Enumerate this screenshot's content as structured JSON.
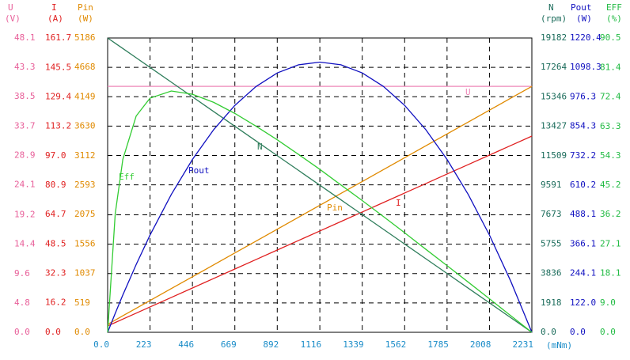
{
  "chart_data": {
    "type": "line",
    "x_unit": "(mNm)",
    "xlim": [
      0,
      2231
    ],
    "xticks": [
      {
        "value": 0,
        "label": "0.0"
      },
      223,
      446,
      669,
      892,
      1116,
      1339,
      1562,
      1785,
      2008,
      2231
    ],
    "x_tick_color": "#1a8cc8",
    "grid": true,
    "axes": [
      {
        "name": "U",
        "unit": "(V)",
        "side": "left",
        "color": "#e8609a",
        "lim": [
          0,
          48.1
        ],
        "ticks": [
          {
            "value": 0,
            "label": "0.0"
          },
          4.8,
          9.6,
          14.4,
          19.2,
          24.1,
          28.9,
          33.7,
          38.5,
          43.3,
          48.1
        ]
      },
      {
        "name": "I",
        "unit": "(A)",
        "side": "left",
        "color": "#e02020",
        "lim": [
          0,
          161.7
        ],
        "ticks": [
          {
            "value": 0,
            "label": "0.0"
          },
          16.2,
          32.3,
          48.5,
          64.7,
          80.9,
          {
            "value": 97,
            "label": "97.0"
          },
          113.2,
          129.4,
          145.5,
          161.7
        ]
      },
      {
        "name": "Pin",
        "unit": "(W)",
        "side": "left",
        "color": "#e08a00",
        "lim": [
          0,
          5186
        ],
        "ticks": [
          {
            "value": 0,
            "label": "0.0"
          },
          519,
          1037,
          1556,
          2075,
          2593,
          3112,
          3630,
          4149,
          4668,
          5186
        ]
      },
      {
        "name": "N",
        "unit": "(rpm)",
        "side": "right",
        "color": "#1a6b5a",
        "lim": [
          0,
          19182
        ],
        "ticks": [
          {
            "value": 0,
            "label": "0.0"
          },
          1918,
          3836,
          5755,
          7673,
          9591,
          11509,
          13427,
          15346,
          17264,
          19182
        ]
      },
      {
        "name": "Pout",
        "unit": "(W)",
        "side": "right",
        "color": "#1010c0",
        "lim": [
          0,
          1220.4
        ],
        "ticks": [
          {
            "value": 0,
            "label": "0.0"
          },
          {
            "value": 122,
            "label": "122.0"
          },
          244.1,
          366.1,
          488.1,
          610.2,
          732.2,
          854.3,
          976.3,
          1098.3,
          1220.4
        ]
      },
      {
        "name": "EFF",
        "unit": "(%)",
        "side": "right",
        "color": "#22bb44",
        "lim": [
          0,
          90.5
        ],
        "ticks": [
          {
            "value": 0,
            "label": "0.0"
          },
          {
            "value": 9,
            "label": "9.0"
          },
          18.1,
          27.1,
          36.2,
          45.2,
          54.3,
          63.3,
          72.4,
          81.4,
          90.5
        ]
      }
    ],
    "x": [
      0,
      40,
      80,
      150,
      223,
      335,
      446,
      558,
      669,
      780,
      892,
      1004,
      1116,
      1227,
      1339,
      1450,
      1562,
      1674,
      1785,
      1897,
      2008,
      2120,
      2231
    ],
    "series": [
      {
        "name": "U",
        "color": "#ee88b8",
        "axis": 0,
        "values": [
          40.2,
          40.2,
          40.2,
          40.2,
          40.2,
          40.2,
          40.2,
          40.2,
          40.2,
          40.2,
          40.2,
          40.2,
          40.2,
          40.2,
          40.2,
          40.2,
          40.2,
          40.2,
          40.2,
          40.2,
          40.2,
          40.2,
          40.2
        ]
      },
      {
        "name": "I",
        "color": "#e02020",
        "axis": 1,
        "values": [
          3.5,
          5.37,
          7.24,
          10.51,
          13.93,
          19.16,
          24.35,
          29.59,
          34.78,
          39.97,
          45.2,
          50.44,
          55.67,
          60.86,
          66.1,
          71.29,
          76.52,
          81.76,
          86.95,
          92.18,
          97.37,
          102.61,
          107.8
        ]
      },
      {
        "name": "Pin",
        "color": "#e08a00",
        "axis": 2,
        "values": [
          140.7,
          215.9,
          291.1,
          422.6,
          559.8,
          770.3,
          978.9,
          1189.4,
          1398,
          1606.6,
          1817.1,
          2027.6,
          2238.1,
          2446.7,
          2657.2,
          2865.8,
          3076.3,
          3286.8,
          3495.4,
          3705.8,
          3914.4,
          4124.9,
          4333.4
        ]
      },
      {
        "name": "N",
        "color": "#2e7d5b",
        "axis": 3,
        "values": [
          19182,
          18838,
          18494,
          17892,
          17265,
          16302,
          15347,
          14384,
          13430,
          12476,
          11513,
          10550,
          9587,
          8633,
          7670,
          6716,
          5753,
          4790,
          3835,
          2872,
          1918,
          954,
          0
        ]
      },
      {
        "name": "Pout",
        "color": "#1010c0",
        "axis": 4,
        "values": [
          0,
          78.9,
          154.9,
          281,
          403.2,
          571.9,
          716.8,
          840.6,
          940.8,
          1019,
          1075.4,
          1109.2,
          1120.4,
          1109.2,
          1075.4,
          1019.7,
          940.9,
          839.5,
          716.8,
          570.5,
          403.1,
          211.8,
          0
        ]
      },
      {
        "name": "Eff",
        "color": "#33cc33",
        "axis": 5,
        "values": [
          0,
          36.5,
          53.2,
          66.5,
          72,
          74.2,
          73.2,
          70.7,
          67.3,
          63.4,
          59.2,
          54.7,
          50.1,
          45.3,
          40.5,
          35.6,
          30.6,
          25.5,
          20.5,
          15.4,
          10.3,
          5.1,
          0
        ]
      }
    ]
  }
}
